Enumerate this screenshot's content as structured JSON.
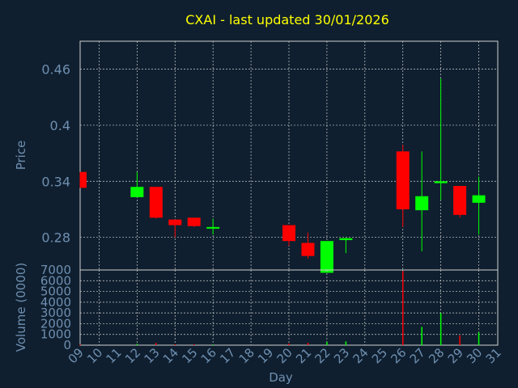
{
  "title": "CXAI - last updated 30/01/2026",
  "colors": {
    "background": "#0f1f2f",
    "title": "#ffff00",
    "axis_text": "#6f8fb0",
    "grid": "#d0d0d0",
    "up": "#00ff00",
    "down": "#ff0000"
  },
  "chart_data": [
    {
      "type": "candlestick",
      "ylabel": "Price",
      "ylim": [
        0.245,
        0.49
      ],
      "yticks": [
        "0.46",
        "0.4",
        "0.34",
        "0.28"
      ],
      "ytick_values": [
        0.46,
        0.4,
        0.34,
        0.28
      ],
      "grid": true,
      "candles": [
        {
          "day": 9,
          "open": 0.35,
          "high": 0.35,
          "low": 0.333,
          "close": 0.333
        },
        {
          "day": 12,
          "open": 0.323,
          "high": 0.35,
          "low": 0.323,
          "close": 0.334
        },
        {
          "day": 13,
          "open": 0.334,
          "high": 0.334,
          "low": 0.3,
          "close": 0.301
        },
        {
          "day": 14,
          "open": 0.299,
          "high": 0.299,
          "low": 0.28,
          "close": 0.293
        },
        {
          "day": 15,
          "open": 0.301,
          "high": 0.301,
          "low": 0.291,
          "close": 0.292
        },
        {
          "day": 16,
          "open": 0.29,
          "high": 0.3,
          "low": 0.283,
          "close": 0.291
        },
        {
          "day": 20,
          "open": 0.293,
          "high": 0.293,
          "low": 0.271,
          "close": 0.276
        },
        {
          "day": 21,
          "open": 0.274,
          "high": 0.285,
          "low": 0.257,
          "close": 0.26
        },
        {
          "day": 22,
          "open": 0.242,
          "high": 0.276,
          "low": 0.242,
          "close": 0.276
        },
        {
          "day": 23,
          "open": 0.277,
          "high": 0.28,
          "low": 0.263,
          "close": 0.279
        },
        {
          "day": 26,
          "open": 0.372,
          "high": 0.379,
          "low": 0.291,
          "close": 0.31
        },
        {
          "day": 27,
          "open": 0.309,
          "high": 0.372,
          "low": 0.265,
          "close": 0.324
        },
        {
          "day": 28,
          "open": 0.338,
          "high": 0.45,
          "low": 0.32,
          "close": 0.34
        },
        {
          "day": 29,
          "open": 0.335,
          "high": 0.335,
          "low": 0.301,
          "close": 0.304
        },
        {
          "day": 30,
          "open": 0.317,
          "high": 0.345,
          "low": 0.283,
          "close": 0.325
        }
      ]
    },
    {
      "type": "bar",
      "ylabel": "Volume (0000)",
      "xlabel": "Day",
      "ylim": [
        0,
        7000
      ],
      "yticks": [
        "7000",
        "6000",
        "5000",
        "4000",
        "3000",
        "2000",
        "1000",
        "0"
      ],
      "ytick_values": [
        7000,
        6000,
        5000,
        4000,
        3000,
        2000,
        1000,
        0
      ],
      "grid": true,
      "xlim": [
        9,
        31
      ],
      "xticks": [
        "09",
        "10",
        "11",
        "12",
        "13",
        "14",
        "15",
        "16",
        "17",
        "18",
        "19",
        "20",
        "21",
        "22",
        "23",
        "24",
        "25",
        "26",
        "27",
        "28",
        "29",
        "30",
        "31"
      ],
      "xtick_values": [
        9,
        10,
        11,
        12,
        13,
        14,
        15,
        16,
        17,
        18,
        19,
        20,
        21,
        22,
        23,
        24,
        25,
        26,
        27,
        28,
        29,
        30,
        31
      ],
      "bars": [
        {
          "day": 9,
          "value": 80,
          "color": "down"
        },
        {
          "day": 12,
          "value": 120,
          "color": "up"
        },
        {
          "day": 13,
          "value": 200,
          "color": "down"
        },
        {
          "day": 14,
          "value": 90,
          "color": "down"
        },
        {
          "day": 15,
          "value": 80,
          "color": "down"
        },
        {
          "day": 16,
          "value": 60,
          "color": "up"
        },
        {
          "day": 20,
          "value": 150,
          "color": "down"
        },
        {
          "day": 21,
          "value": 220,
          "color": "down"
        },
        {
          "day": 22,
          "value": 300,
          "color": "up"
        },
        {
          "day": 23,
          "value": 350,
          "color": "up"
        },
        {
          "day": 26,
          "value": 6900,
          "color": "down"
        },
        {
          "day": 27,
          "value": 1700,
          "color": "up"
        },
        {
          "day": 28,
          "value": 3000,
          "color": "up"
        },
        {
          "day": 29,
          "value": 900,
          "color": "down"
        },
        {
          "day": 30,
          "value": 1200,
          "color": "up"
        }
      ]
    }
  ]
}
